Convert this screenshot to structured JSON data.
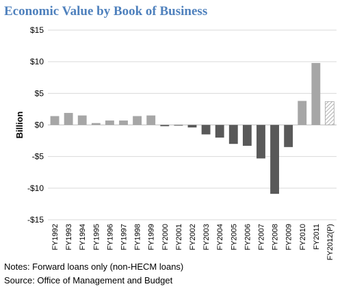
{
  "chart_data": {
    "type": "bar",
    "title": "Economic Value by Book of Business",
    "ylabel": "Billion",
    "xlabel": "",
    "ylim": [
      -15,
      15
    ],
    "yticks": [
      15,
      10,
      5,
      0,
      -5,
      -10,
      -15
    ],
    "ytick_labels": [
      "$15",
      "$10",
      "$5",
      "$0",
      "-$5",
      "-$10",
      "-$15"
    ],
    "grid": true,
    "legend": "none",
    "categories": [
      "FY1992",
      "FY1993",
      "FY1994",
      "FY1995",
      "FY1996",
      "FY1997",
      "FY1998",
      "FY1999",
      "FY2000",
      "FY2001",
      "FY2002",
      "FY2003",
      "FY2004",
      "FY2005",
      "FY2006",
      "FY2007",
      "FY2008",
      "FY2009",
      "FY2010",
      "FY2011",
      "FY2012(P)"
    ],
    "values": [
      1.4,
      1.9,
      1.5,
      0.3,
      0.7,
      0.7,
      1.4,
      1.5,
      -0.2,
      -0.1,
      -0.4,
      -1.5,
      -2.0,
      -3.0,
      -3.3,
      -5.3,
      -10.9,
      -3.5,
      3.8,
      9.8,
      3.7
    ],
    "colors": {
      "positive": "#a6a6a6",
      "negative": "#595959",
      "projected": "#c8c8c8",
      "grid": "#d9d9d9"
    }
  },
  "notes": "Notes: Forward loans only (non-HECM loans)",
  "source": "Source: Office of Management and Budget"
}
